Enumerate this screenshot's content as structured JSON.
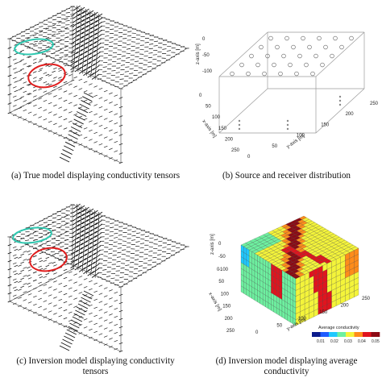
{
  "captions": {
    "a": "(a) True model displaying conductivity tensors",
    "b": "(b) Source and receiver distribution",
    "c_line1": "(c) Inversion model displaying conductivity",
    "c_line2": "tensors",
    "d_line1": "(d) Inversion model displaying average",
    "d_line2": "conductivity"
  },
  "panel_b": {
    "z_axis_label": "z-axis [m]",
    "x_axis_label": "x-axis [m]",
    "y_axis_label": "y-axis [m]",
    "z_ticks": [
      "0",
      "-50",
      "-100"
    ],
    "x_ticks": [
      "0",
      "50",
      "100",
      "150",
      "200",
      "250"
    ],
    "y_ticks": [
      "0",
      "50",
      "100",
      "150",
      "200",
      "250"
    ]
  },
  "panel_d": {
    "z_axis_label": "z-axis [m]",
    "x_axis_label": "x-axis [m]",
    "y_axis_label": "y-axis [m]",
    "z_ticks": [
      "0",
      "-50",
      "-100"
    ],
    "x_ticks": [
      "0",
      "50",
      "100",
      "150",
      "200",
      "250"
    ],
    "y_ticks": [
      "0",
      "50",
      "100",
      "150",
      "200",
      "250"
    ],
    "colorbar_title": "Average conductivity",
    "colorbar_ticks": [
      "0.01",
      "0.02",
      "0.03",
      "0.04",
      "0.05"
    ],
    "colormap": [
      "#0a1a8c",
      "#1f5cff",
      "#1fc8ff",
      "#6ef0a0",
      "#f4f43a",
      "#ff8c1a",
      "#e0141e",
      "#8c0a14"
    ]
  },
  "annotation_colors": {
    "ellipse_cyan": "#2fc8b0",
    "ellipse_red": "#e01e1e"
  }
}
